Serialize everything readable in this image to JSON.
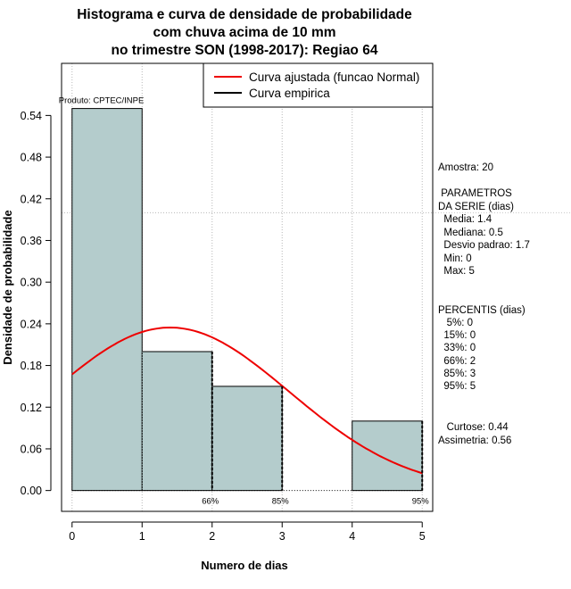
{
  "chart_data": {
    "type": "bar",
    "title_lines": [
      "Histograma e curva de densidade de probabilidade",
      "com chuva acima de 10 mm",
      "no trimestre SON (1998-2017): Regiao 64"
    ],
    "xlabel": "Numero de dias",
    "ylabel": "Densidade de probabilidade",
    "xlim": [
      -0.15,
      5.15
    ],
    "ylim": [
      -0.03,
      0.615
    ],
    "x_ticks": [
      0,
      1,
      2,
      3,
      4,
      5
    ],
    "y_ticks": [
      0.0,
      0.06,
      0.12,
      0.18,
      0.24,
      0.3,
      0.36,
      0.42,
      0.48,
      0.54
    ],
    "y_tick_labels": [
      "0.00",
      "0.06",
      "0.12",
      "0.18",
      "0.24",
      "0.30",
      "0.36",
      "0.42",
      "0.48",
      "0.54"
    ],
    "bins": [
      {
        "from": 0,
        "to": 1,
        "density": 0.55
      },
      {
        "from": 1,
        "to": 2,
        "density": 0.2
      },
      {
        "from": 2,
        "to": 3,
        "density": 0.15
      },
      {
        "from": 3,
        "to": 4,
        "density": 0.0
      },
      {
        "from": 4,
        "to": 5,
        "density": 0.1
      }
    ],
    "hline_grid": 0.4,
    "normal_fit": {
      "mean": 1.4,
      "sd": 1.7,
      "x_from": 0,
      "x_to": 5
    },
    "percentile_markers": [
      {
        "label": "66%",
        "x": 2
      },
      {
        "label": "85%",
        "x": 3
      },
      {
        "label": "95%",
        "x": 5
      }
    ],
    "product_label": "Produto: CPTEC/INPE",
    "legend": [
      {
        "label": "Curva ajustada (funcao Normal)",
        "color": "#ee0000"
      },
      {
        "label": "Curva empirica",
        "color": "#000000"
      }
    ],
    "bar_color": "#b4cccc",
    "legend_position": "top-right"
  },
  "stats": {
    "amostra": "Amostra: 20",
    "parametros_title": " PARAMETROS",
    "parametros_sub": "DA SERIE (dias)",
    "media": "  Media: 1.4",
    "mediana": "  Mediana: 0.5",
    "desvio": "  Desvio padrao: 1.7",
    "min": "  Min: 0",
    "max": "  Max: 5",
    "percentis_title": "PERCENTIS (dias)",
    "p5": "   5%: 0",
    "p15": "  15%: 0",
    "p33": "  33%: 0",
    "p66": "  66%: 2",
    "p85": "  85%: 3",
    "p95": "  95%: 5",
    "curtose": "   Curtose: 0.44",
    "assimetria": "Assimetria: 0.56"
  }
}
